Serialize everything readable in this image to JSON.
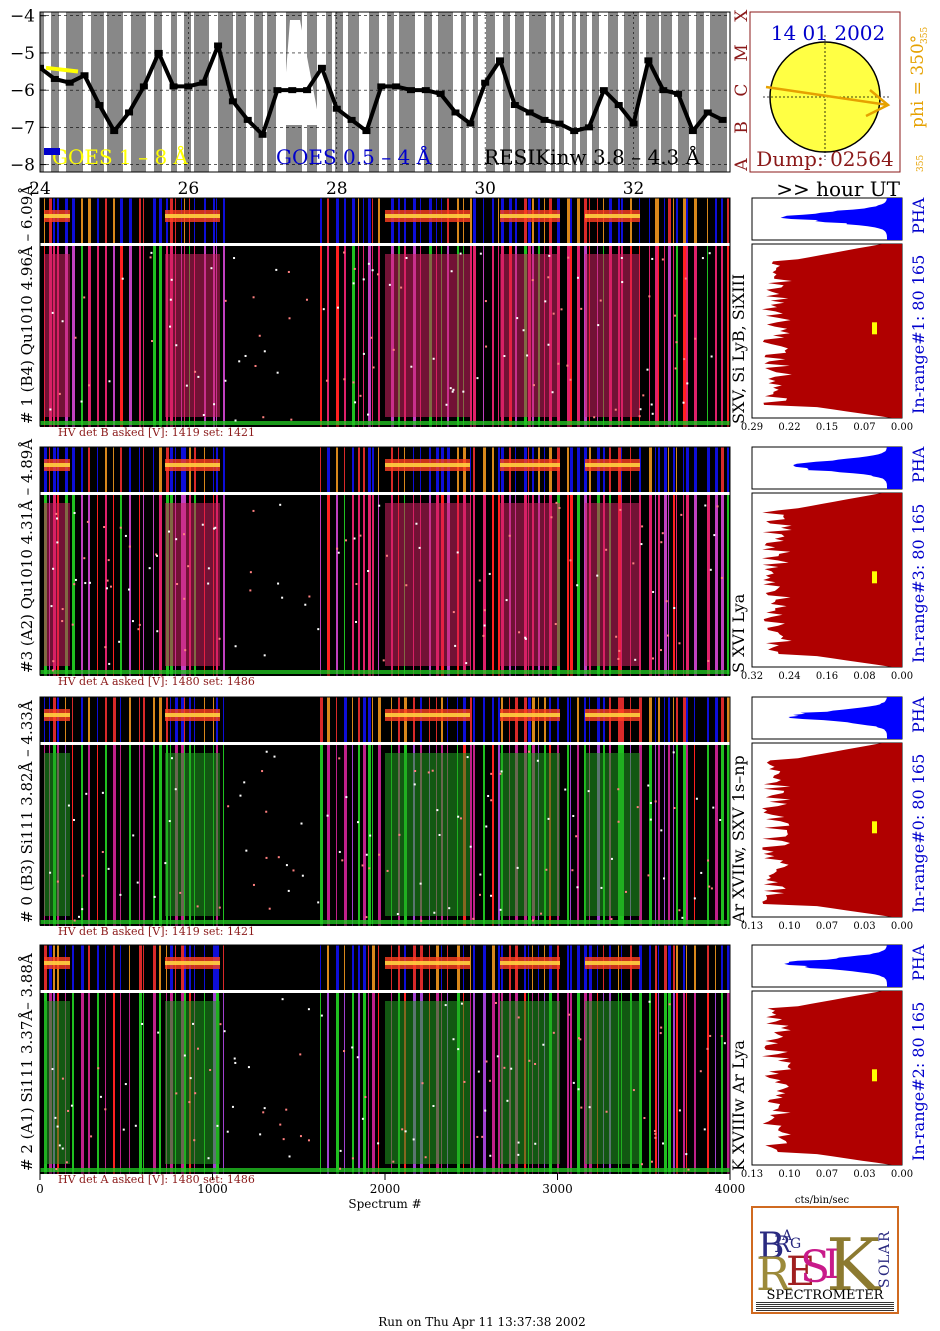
{
  "colors": {
    "goes_yellow": "#ffff00",
    "goes_blue": "#0000cc",
    "sun_yellow": "#ffff44",
    "phi_orange": "#e6a100",
    "dark_red": "#8b1a1a",
    "range_red": "#b00000",
    "pha_blue": "#0000ff"
  },
  "header": {
    "goes_long": "GOES 1 – 8 Å",
    "goes_short": "GOES 0.5 – 4 Å",
    "resik": "RESIKinw 3.8 – 4.3 Å",
    "date": "14 01 2002",
    "dump": "Dump: 02564",
    "phi": "phi = 350°",
    "phi_sub": "355",
    "phi_sub2": "355",
    "hour_ut": ">> hour UT"
  },
  "goes_chart": {
    "type": "line",
    "x_range": [
      24,
      33.3
    ],
    "x_ticks": [
      "24",
      "26",
      "28",
      "30",
      "32"
    ],
    "y_ticks": [
      "−4",
      "−5",
      "−6",
      "−7",
      "−8"
    ],
    "y_range": [
      -8.2,
      -3.9
    ],
    "flare_classes": [
      "A",
      "B",
      "C",
      "M",
      "X"
    ],
    "flare_levels": [
      -8,
      -7,
      -6,
      -5,
      -4
    ],
    "x": [
      24.0,
      24.2,
      24.4,
      24.6,
      24.8,
      25.0,
      25.2,
      25.4,
      25.6,
      25.8,
      26.0,
      26.2,
      26.4,
      26.6,
      26.8,
      27.0,
      27.2,
      27.4,
      27.6,
      27.8,
      28.0,
      28.2,
      28.4,
      28.6,
      28.8,
      29.0,
      29.2,
      29.4,
      29.6,
      29.8,
      30.0,
      30.2,
      30.4,
      30.6,
      30.8,
      31.0,
      31.2,
      31.4,
      31.6,
      31.8,
      32.0,
      32.2,
      32.4,
      32.6,
      32.8,
      33.0,
      33.2
    ],
    "y": [
      -5.4,
      -5.7,
      -5.8,
      -5.6,
      -6.4,
      -7.1,
      -6.6,
      -5.9,
      -5.0,
      -5.9,
      -5.9,
      -5.8,
      -4.8,
      -6.3,
      -6.8,
      -7.2,
      -6.0,
      -6.0,
      -6.0,
      -5.4,
      -6.5,
      -6.8,
      -7.1,
      -5.9,
      -5.9,
      -6.0,
      -6.0,
      -6.1,
      -6.6,
      -6.9,
      -5.8,
      -5.2,
      -6.4,
      -6.6,
      -6.8,
      -6.9,
      -7.1,
      -7.0,
      -6.0,
      -6.4,
      -6.9,
      -5.2,
      -6.0,
      -6.1,
      -7.1,
      -6.6,
      -6.8
    ],
    "spectra": {
      "name": "",
      "x": [
        24.0,
        26.2,
        28.4,
        30.4,
        31.6
      ],
      "yeval": 0
    }
  },
  "panels": [
    {
      "label": "# 1 (B4) Qu1010 4.96Å – 6.09Å",
      "lines": "SXV, Si LyB, SiXIII",
      "hv": "HV det B asked [V]:  1419 set:  1421",
      "range_label": "In-range#1:   80 165",
      "ticks": [
        "0.29",
        "0.22",
        "0.15",
        "0.07",
        "0.00"
      ],
      "pha": "PHA"
    },
    {
      "label": "#3 (A2) Qu1010  4.31Å – 4.89Å",
      "lines": "S XVI Lya",
      "hv": "HV det A asked [V]:  1480 set:  1486",
      "range_label": "In-range#3:   80 165",
      "ticks": [
        "0.32",
        "0.24",
        "0.16",
        "0.08",
        "0.00"
      ],
      "pha": "PHA"
    },
    {
      "label": "# 0 (B3) Si111  3.82Å – 4.33Å",
      "lines": "Ar XVIIw, SXV 1s–np",
      "hv": "HV det B asked [V]:  1419 set:  1421",
      "range_label": "In-range#0:   80 165",
      "ticks": [
        "0.13",
        "0.10",
        "0.07",
        "0.03",
        "0.00"
      ],
      "pha": "PHA"
    },
    {
      "label": "# 2 (A1) Si111  3.37Å– 3.88Å",
      "lines": "K XVIIIw  Ar Lya",
      "hv": "HV det A asked [V]:  1480 set:  1486",
      "range_label": "In-range#2:   80 165",
      "ticks": [
        "0.13",
        "0.10",
        "0.07",
        "0.03",
        "0.00"
      ],
      "pha": "PHA"
    }
  ],
  "axis": {
    "x_ticks": [
      "0",
      "1000",
      "2000",
      "3000",
      "4000"
    ],
    "x_label": "Spectrum #",
    "right_x_label": "cts/bin/sec"
  },
  "logo": {
    "letters": [
      "B",
      "R",
      "A",
      "G",
      "R",
      "E",
      "S",
      "I",
      "K",
      "S",
      "O",
      "L",
      "A",
      "R"
    ],
    "title": "SPECTROMETER"
  },
  "footer": "Run on Thu Apr 11 13:37:38 2002"
}
